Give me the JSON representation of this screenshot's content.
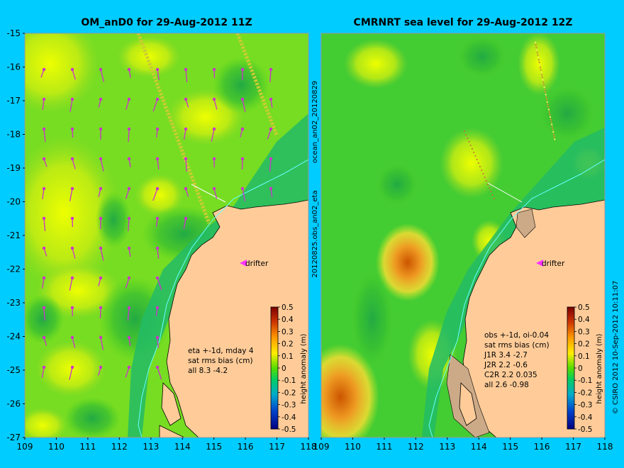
{
  "panels": [
    {
      "id": "left",
      "title": "OM_anD0 for 29-Aug-2012 11Z",
      "notes": [
        "eta +-1d, mday 4",
        "sat rms bias (cm)",
        "all 8.3 -4.2"
      ],
      "drifter_label": "drifter"
    },
    {
      "id": "right",
      "title": "CMRNRT sea level  for 29-Aug-2012 12Z",
      "notes": [
        "obs +-1d, oi-0.04",
        "sat rms bias (cm)",
        "J1R   3.4 -2.7",
        "J2R   2.2 -0.6",
        "C2R   2.2 0.035",
        "all 2.6 -0.98"
      ],
      "drifter_label": "drifter"
    }
  ],
  "axes": {
    "lon_ticks": [
      "109",
      "110",
      "111",
      "112",
      "113",
      "114",
      "115",
      "116",
      "117",
      "118"
    ],
    "lat_ticks": [
      "-15",
      "-16",
      "-17",
      "-18",
      "-19",
      "-20",
      "-21",
      "-22",
      "-23",
      "-24",
      "-25",
      "-26",
      "-27"
    ],
    "lon_range": [
      109,
      118
    ],
    "lat_range": [
      -27,
      -15
    ]
  },
  "colorbar": {
    "label": "height anomaly (m)",
    "ticks": [
      "0.5",
      "0.4",
      "0.3",
      "0.2",
      "0.1",
      "0",
      "-0.1",
      "-0.2",
      "-0.3",
      "-0.4",
      "-0.5"
    ],
    "range": [
      -0.5,
      0.5
    ]
  },
  "side_labels": {
    "middle_top": "ocean_an02_20120829",
    "middle_bottom": "20120825.obs_an02_eta",
    "right_edge": "© CSIRO 2012   10-Sep-2012 10:11:07"
  },
  "colors": {
    "background": "#00ccff",
    "land": "#ffcc99",
    "current_arrows": "#cc33cc",
    "drifter_marker": "#ff33ff",
    "satellite_track": "#cccc33",
    "coast_line": "#66ffff"
  }
}
